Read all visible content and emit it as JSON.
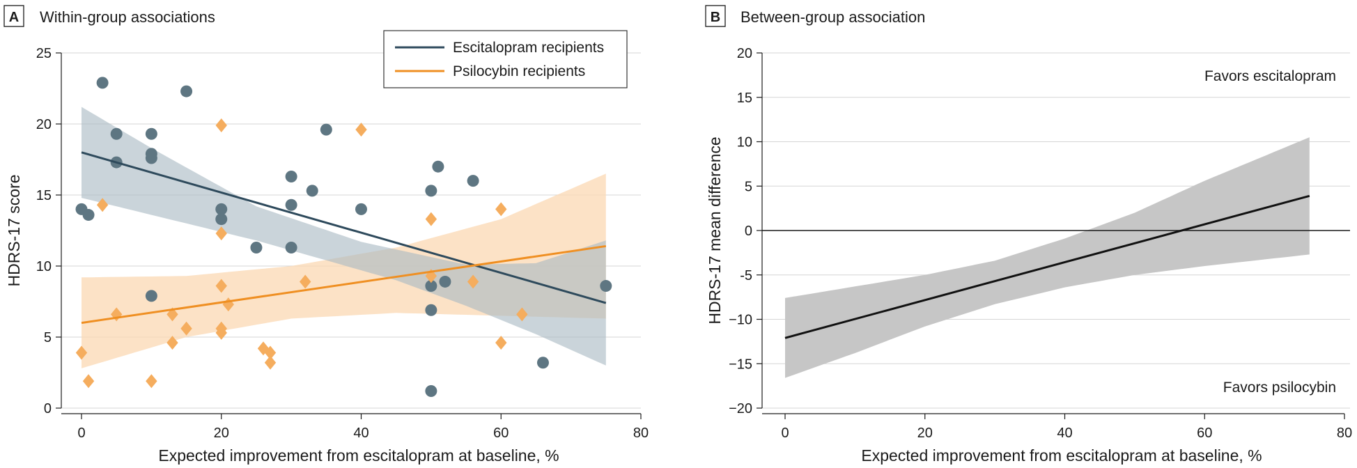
{
  "colors": {
    "escitalopram": "#2e4a5c",
    "escitalopram_point": "#5e7682",
    "escitalopram_band": "#a9b9c3",
    "psilocybin": "#ef8f22",
    "psilocybin_point": "#f5ad5e",
    "psilocybin_band": "#fbd8b3",
    "between_band": "#c6c6c6",
    "between_line": "#111111",
    "grid": "#d5d5d5"
  },
  "chart_data": [
    {
      "type": "scatter",
      "panel_letter": "A",
      "title": "Within-group associations",
      "xlabel": "Expected improvement from escitalopram at baseline, %",
      "ylabel": "HDRS-17 score",
      "xlim": [
        0,
        80
      ],
      "ylim": [
        0,
        25
      ],
      "xticks": [
        0,
        20,
        40,
        60,
        80
      ],
      "yticks": [
        0,
        5,
        10,
        15,
        20,
        25
      ],
      "grid": "horizontal",
      "legend_position": "top-right",
      "series": [
        {
          "name": "Escitalopram recipients",
          "marker": "circle",
          "points": [
            [
              0,
              14
            ],
            [
              1,
              13.6
            ],
            [
              3,
              22.9
            ],
            [
              5,
              19.3
            ],
            [
              5,
              17.3
            ],
            [
              10,
              19.3
            ],
            [
              10,
              17.9
            ],
            [
              10,
              17.6
            ],
            [
              10,
              7.9
            ],
            [
              15,
              22.3
            ],
            [
              20,
              14
            ],
            [
              20,
              13.3
            ],
            [
              25,
              11.3
            ],
            [
              30,
              16.3
            ],
            [
              30,
              14.3
            ],
            [
              30,
              11.3
            ],
            [
              33,
              15.3
            ],
            [
              35,
              19.6
            ],
            [
              40,
              14
            ],
            [
              50,
              15.3
            ],
            [
              50,
              8.6
            ],
            [
              50,
              6.9
            ],
            [
              50,
              1.2
            ],
            [
              51,
              17
            ],
            [
              52,
              8.9
            ],
            [
              56,
              16
            ],
            [
              66,
              3.2
            ],
            [
              75,
              8.6
            ]
          ],
          "fit": {
            "x": [
              0,
              75
            ],
            "y": [
              18,
              7.4
            ]
          },
          "ci_lower": [
            [
              0,
              14.8
            ],
            [
              25,
              11.8
            ],
            [
              45,
              9.0
            ],
            [
              55,
              7.2
            ],
            [
              65,
              5.2
            ],
            [
              75,
              3.0
            ]
          ],
          "ci_upper": [
            [
              0,
              21.2
            ],
            [
              10,
              18.3
            ],
            [
              25,
              14.2
            ],
            [
              40,
              11.7
            ],
            [
              55,
              10.1
            ],
            [
              65,
              10.2
            ],
            [
              75,
              11.8
            ]
          ]
        },
        {
          "name": "Psilocybin recipients",
          "marker": "diamond",
          "points": [
            [
              0,
              3.9
            ],
            [
              1,
              1.9
            ],
            [
              3,
              14.3
            ],
            [
              5,
              6.6
            ],
            [
              10,
              1.9
            ],
            [
              13,
              6.6
            ],
            [
              13,
              4.6
            ],
            [
              15,
              5.6
            ],
            [
              20,
              19.9
            ],
            [
              20,
              12.3
            ],
            [
              20,
              8.6
            ],
            [
              20,
              5.6
            ],
            [
              20,
              5.3
            ],
            [
              21,
              7.3
            ],
            [
              26,
              4.2
            ],
            [
              27,
              3.9
            ],
            [
              27,
              3.2
            ],
            [
              32,
              8.9
            ],
            [
              40,
              19.6
            ],
            [
              50,
              13.3
            ],
            [
              50,
              9.3
            ],
            [
              56,
              8.9
            ],
            [
              60,
              14
            ],
            [
              60,
              4.6
            ],
            [
              63,
              6.6
            ]
          ],
          "fit": {
            "x": [
              0,
              75
            ],
            "y": [
              6,
              11.4
            ]
          },
          "ci_lower": [
            [
              0,
              2.8
            ],
            [
              15,
              5.0
            ],
            [
              30,
              6.3
            ],
            [
              45,
              6.7
            ],
            [
              60,
              6.5
            ],
            [
              75,
              6.3
            ]
          ],
          "ci_upper": [
            [
              0,
              9.2
            ],
            [
              15,
              9.3
            ],
            [
              30,
              10.0
            ],
            [
              45,
              11.3
            ],
            [
              60,
              13.3
            ],
            [
              75,
              16.5
            ]
          ]
        }
      ]
    },
    {
      "type": "line",
      "panel_letter": "B",
      "title": "Between-group association",
      "xlabel": "Expected improvement from escitalopram at baseline, %",
      "ylabel": "HDRS-17 mean difference",
      "xlim": [
        -5,
        80
      ],
      "ylim": [
        -20,
        20
      ],
      "xticks": [
        0,
        20,
        40,
        60,
        80
      ],
      "yticks": [
        -20,
        -15,
        -10,
        -5,
        0,
        5,
        10,
        15,
        20
      ],
      "ytick_labels": [
        "−20",
        "−15",
        "−10",
        "-5",
        "0",
        "5",
        "10",
        "15",
        "20"
      ],
      "grid": "horizontal",
      "reference_line": 0,
      "annotations": {
        "top": "Favors escitalopram",
        "bottom": "Favors psilocybin"
      },
      "series": [
        {
          "name": "Mean difference",
          "fit": {
            "x": [
              0,
              75
            ],
            "y": [
              -12.1,
              3.9
            ]
          },
          "ci_lower": [
            [
              0,
              -16.6
            ],
            [
              10,
              -13.8
            ],
            [
              20,
              -10.8
            ],
            [
              30,
              -8.3
            ],
            [
              40,
              -6.4
            ],
            [
              50,
              -5.0
            ],
            [
              60,
              -4.0
            ],
            [
              75,
              -2.7
            ]
          ],
          "ci_upper": [
            [
              0,
              -7.6
            ],
            [
              10,
              -6.3
            ],
            [
              20,
              -5.0
            ],
            [
              30,
              -3.4
            ],
            [
              40,
              -0.9
            ],
            [
              50,
              2.0
            ],
            [
              60,
              5.6
            ],
            [
              75,
              10.5
            ]
          ]
        }
      ]
    }
  ]
}
